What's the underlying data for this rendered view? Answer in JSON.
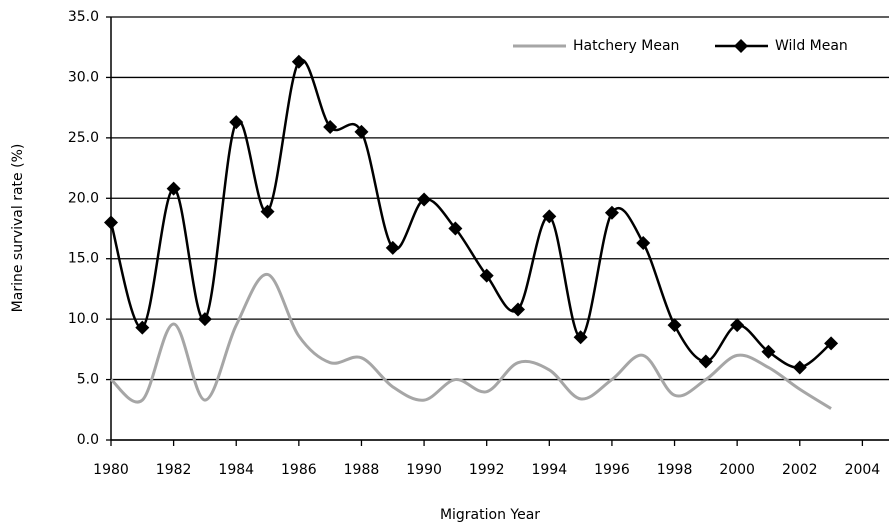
{
  "chart_data": {
    "type": "line",
    "x_label": "Migration  Year",
    "y_label": "Marine survival rate (%)",
    "x": [
      1980,
      1981,
      1982,
      1983,
      1984,
      1985,
      1986,
      1987,
      1988,
      1989,
      1990,
      1991,
      1992,
      1993,
      1994,
      1995,
      1996,
      1997,
      1998,
      1999,
      2000,
      2001,
      2002,
      2003
    ],
    "series": [
      {
        "name": "Hatchery Mean",
        "color": "#a6a6a6",
        "marker": false,
        "values": [
          5.0,
          3.3,
          9.6,
          3.3,
          9.5,
          13.7,
          8.6,
          6.4,
          6.8,
          4.4,
          3.3,
          5.0,
          4.0,
          6.4,
          5.8,
          3.4,
          5.0,
          7.0,
          3.7,
          5.0,
          7.0,
          6.0,
          4.2,
          2.6
        ]
      },
      {
        "name": "Wild Mean",
        "color": "#000000",
        "marker": true,
        "values": [
          18.0,
          9.3,
          20.8,
          10.0,
          26.3,
          18.9,
          31.3,
          25.9,
          25.5,
          15.9,
          19.9,
          17.5,
          13.6,
          10.8,
          18.5,
          8.5,
          18.8,
          16.3,
          9.5,
          6.5,
          9.5,
          7.3,
          6.0,
          8.0
        ]
      }
    ],
    "xlim": [
      1980,
      2004.85
    ],
    "xticks": [
      1980,
      1982,
      1984,
      1986,
      1988,
      1990,
      1992,
      1994,
      1996,
      1998,
      2000,
      2002,
      2004
    ],
    "ylim": [
      0,
      35
    ],
    "yticks": [
      {
        "value": 0,
        "label": "0.0"
      },
      {
        "value": 5,
        "label": "5.0"
      },
      {
        "value": 10,
        "label": "10.0"
      },
      {
        "value": 15,
        "label": "15.0"
      },
      {
        "value": 20,
        "label": "20.0"
      },
      {
        "value": 25,
        "label": "25.0"
      },
      {
        "value": 30,
        "label": "30.0"
      },
      {
        "value": 35,
        "label": "35.0"
      }
    ],
    "grid": true,
    "legend": "top-right"
  }
}
